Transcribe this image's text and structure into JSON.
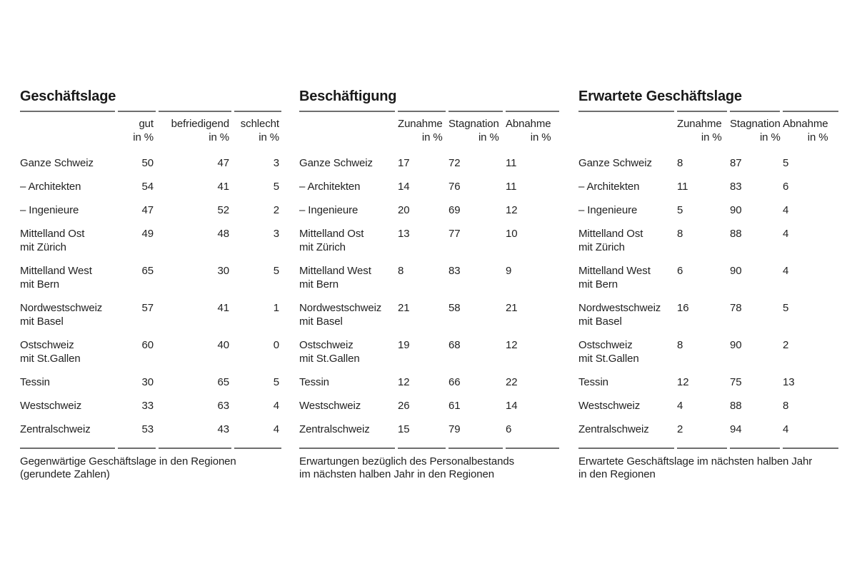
{
  "colors": {
    "background": "#ffffff",
    "text": "#222222",
    "rule": "#6e6e6e"
  },
  "tables": [
    {
      "title": "Geschäftslage",
      "columns": [
        {
          "label": "gut",
          "unit": "in %"
        },
        {
          "label": "befriedigend",
          "unit": "in %"
        },
        {
          "label": "schlecht",
          "unit": "in %"
        }
      ],
      "rows": [
        {
          "region": "Ganze Schweiz",
          "region_line2": "",
          "values": [
            "50",
            "47",
            "3"
          ]
        },
        {
          "region": "– Architekten",
          "region_line2": "",
          "values": [
            "54",
            "41",
            "5"
          ]
        },
        {
          "region": "– Ingenieure",
          "region_line2": "",
          "values": [
            "47",
            "52",
            "2"
          ]
        },
        {
          "region": "Mittelland Ost",
          "region_line2": "mit Zürich",
          "values": [
            "49",
            "48",
            "3"
          ]
        },
        {
          "region": "Mittelland West",
          "region_line2": "mit Bern",
          "values": [
            "65",
            "30",
            "5"
          ]
        },
        {
          "region": "Nordwestschweiz",
          "region_line2": "mit Basel",
          "values": [
            "57",
            "41",
            "1"
          ]
        },
        {
          "region": "Ostschweiz",
          "region_line2": "mit St.Gallen",
          "values": [
            "60",
            "40",
            "0"
          ]
        },
        {
          "region": "Tessin",
          "region_line2": "",
          "values": [
            "30",
            "65",
            "5"
          ]
        },
        {
          "region": "Westschweiz",
          "region_line2": "",
          "values": [
            "33",
            "63",
            "4"
          ]
        },
        {
          "region": "Zentralschweiz",
          "region_line2": "",
          "values": [
            "53",
            "43",
            "4"
          ]
        }
      ],
      "footnote_line1": "Gegenwärtige Geschäftslage in den Regionen",
      "footnote_line2": "(gerundete Zahlen)"
    },
    {
      "title": "Beschäftigung",
      "columns": [
        {
          "label": "Zunahme",
          "unit": "in %"
        },
        {
          "label": "Stagnation",
          "unit": "in %"
        },
        {
          "label": "Abnahme",
          "unit": "in %"
        }
      ],
      "rows": [
        {
          "region": "Ganze Schweiz",
          "region_line2": "",
          "values": [
            "17",
            "72",
            "11"
          ]
        },
        {
          "region": "– Architekten",
          "region_line2": "",
          "values": [
            "14",
            "76",
            "11"
          ]
        },
        {
          "region": "– Ingenieure",
          "region_line2": "",
          "values": [
            "20",
            "69",
            "12"
          ]
        },
        {
          "region": "Mittelland Ost",
          "region_line2": "mit Zürich",
          "values": [
            "13",
            "77",
            "10"
          ]
        },
        {
          "region": "Mittelland West",
          "region_line2": "mit Bern",
          "values": [
            "8",
            "83",
            "9"
          ]
        },
        {
          "region": "Nordwestschweiz",
          "region_line2": "mit Basel",
          "values": [
            "21",
            "58",
            "21"
          ]
        },
        {
          "region": "Ostschweiz",
          "region_line2": "mit St.Gallen",
          "values": [
            "19",
            "68",
            "12"
          ]
        },
        {
          "region": "Tessin",
          "region_line2": "",
          "values": [
            "12",
            "66",
            "22"
          ]
        },
        {
          "region": "Westschweiz",
          "region_line2": "",
          "values": [
            "26",
            "61",
            "14"
          ]
        },
        {
          "region": "Zentralschweiz",
          "region_line2": "",
          "values": [
            "15",
            "79",
            "6"
          ]
        }
      ],
      "footnote_line1": "Erwartungen bezüglich des Personalbestands",
      "footnote_line2": "im nächsten halben Jahr in den Regionen"
    },
    {
      "title": "Erwartete Geschäftslage",
      "columns": [
        {
          "label": "Zunahme",
          "unit": "in %"
        },
        {
          "label": "Stagnation",
          "unit": "in %"
        },
        {
          "label": "Abnahme",
          "unit": "in %"
        }
      ],
      "rows": [
        {
          "region": "Ganze Schweiz",
          "region_line2": "",
          "values": [
            "8",
            "87",
            "5"
          ]
        },
        {
          "region": "– Architekten",
          "region_line2": "",
          "values": [
            "11",
            "83",
            "6"
          ]
        },
        {
          "region": "– Ingenieure",
          "region_line2": "",
          "values": [
            "5",
            "90",
            "4"
          ]
        },
        {
          "region": "Mittelland Ost",
          "region_line2": "mit Zürich",
          "values": [
            "8",
            "88",
            "4"
          ]
        },
        {
          "region": "Mittelland West",
          "region_line2": "mit Bern",
          "values": [
            "6",
            "90",
            "4"
          ]
        },
        {
          "region": "Nordwestschweiz",
          "region_line2": "mit Basel",
          "values": [
            "16",
            "78",
            "5"
          ]
        },
        {
          "region": "Ostschweiz",
          "region_line2": "mit St.Gallen",
          "values": [
            "8",
            "90",
            "2"
          ]
        },
        {
          "region": "Tessin",
          "region_line2": "",
          "values": [
            "12",
            "75",
            "13"
          ]
        },
        {
          "region": "Westschweiz",
          "region_line2": "",
          "values": [
            "4",
            "88",
            "8"
          ]
        },
        {
          "region": "Zentralschweiz",
          "region_line2": "",
          "values": [
            "2",
            "94",
            "4"
          ]
        }
      ],
      "footnote_line1": "Erwartete Geschäftslage im nächsten halben Jahr",
      "footnote_line2": "in den Regionen"
    }
  ]
}
